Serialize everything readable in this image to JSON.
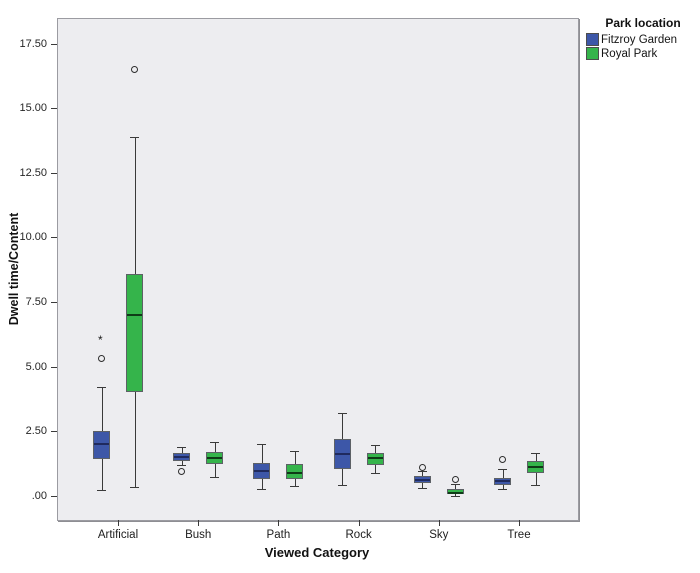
{
  "chart_data": {
    "type": "boxplot",
    "title": "",
    "xlabel": "Viewed Category",
    "ylabel": "Dwell time/Content",
    "legend_title": "Park location",
    "legend_position": "top-right",
    "grid": false,
    "plot_bg_color": "#EDEDF0",
    "categories": [
      "Artificial",
      "Bush",
      "Path",
      "Rock",
      "Sky",
      "Tree"
    ],
    "y_ticks": {
      "labels": [
        ".00",
        "2.50",
        "5.00",
        "7.50",
        "10.00",
        "12.50",
        "15.00",
        "17.50"
      ],
      "values": [
        0,
        2.5,
        5,
        7.5,
        10,
        12.5,
        15,
        17.5
      ]
    },
    "ylim": [
      -0.95,
      18.5
    ],
    "series": [
      {
        "name": "Fitzroy Garden",
        "color": "#3D57A8",
        "median_color": "#1F2A5E",
        "boxes": [
          {
            "category": "Artificial",
            "whisker_low": 0.2,
            "q1": 1.4,
            "median": 2.0,
            "q3": 2.5,
            "whisker_high": 4.2,
            "outliers": [
              {
                "value": 5.3,
                "marker": "circle"
              },
              {
                "value": 6.1,
                "marker": "asterisk"
              }
            ]
          },
          {
            "category": "Bush",
            "whisker_low": 1.2,
            "q1": 1.35,
            "median": 1.5,
            "q3": 1.65,
            "whisker_high": 1.9,
            "outliers": [
              {
                "value": 0.95,
                "marker": "circle"
              }
            ]
          },
          {
            "category": "Path",
            "whisker_low": 0.26,
            "q1": 0.64,
            "median": 0.95,
            "q3": 1.26,
            "whisker_high": 2.0,
            "outliers": []
          },
          {
            "category": "Rock",
            "whisker_low": 0.41,
            "q1": 1.03,
            "median": 1.6,
            "q3": 2.2,
            "whisker_high": 3.2,
            "outliers": []
          },
          {
            "category": "Sky",
            "whisker_low": 0.29,
            "q1": 0.49,
            "median": 0.62,
            "q3": 0.76,
            "whisker_high": 0.95,
            "outliers": [
              {
                "value": 1.1,
                "marker": "circle"
              }
            ]
          },
          {
            "category": "Tree",
            "whisker_low": 0.26,
            "q1": 0.41,
            "median": 0.57,
            "q3": 0.68,
            "whisker_high": 1.03,
            "outliers": [
              {
                "value": 1.4,
                "marker": "circle"
              }
            ]
          }
        ]
      },
      {
        "name": "Royal Park",
        "color": "#35B44B",
        "median_color": "#0F3B17",
        "boxes": [
          {
            "category": "Artificial",
            "whisker_low": 0.33,
            "q1": 4.0,
            "median": 7.0,
            "q3": 8.6,
            "whisker_high": 13.9,
            "outliers": [
              {
                "value": 16.5,
                "marker": "circle"
              }
            ]
          },
          {
            "category": "Bush",
            "whisker_low": 0.72,
            "q1": 1.22,
            "median": 1.46,
            "q3": 1.7,
            "whisker_high": 2.08,
            "outliers": []
          },
          {
            "category": "Path",
            "whisker_low": 0.37,
            "q1": 0.64,
            "median": 0.88,
            "q3": 1.22,
            "whisker_high": 1.73,
            "outliers": []
          },
          {
            "category": "Rock",
            "whisker_low": 0.88,
            "q1": 1.19,
            "median": 1.46,
            "q3": 1.65,
            "whisker_high": 1.96,
            "outliers": []
          },
          {
            "category": "Sky",
            "whisker_low": 0.0,
            "q1": 0.05,
            "median": 0.12,
            "q3": 0.26,
            "whisker_high": 0.45,
            "outliers": [
              {
                "value": 0.64,
                "marker": "circle"
              }
            ]
          },
          {
            "category": "Tree",
            "whisker_low": 0.41,
            "q1": 0.88,
            "median": 1.11,
            "q3": 1.34,
            "whisker_high": 1.65,
            "outliers": []
          }
        ]
      }
    ]
  }
}
